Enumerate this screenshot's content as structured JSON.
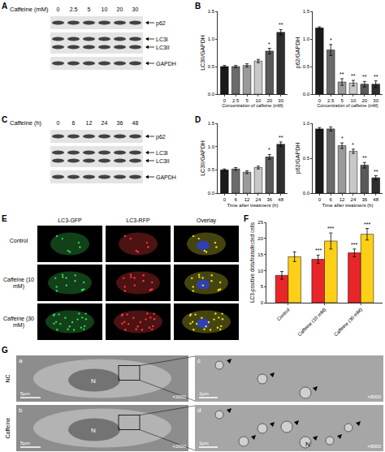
{
  "panel_labels": [
    "A",
    "B",
    "C",
    "D",
    "E",
    "F",
    "G"
  ],
  "blots": [
    {
      "panel": "A",
      "header": "Caffeine (mM)",
      "lanes": [
        "0",
        "2.5",
        "5",
        "10",
        "20",
        "30"
      ],
      "bands": [
        "p62",
        "LC3I",
        "LC3II",
        "GAPDH"
      ]
    },
    {
      "panel": "C",
      "header": "Caffeine (h)",
      "lanes": [
        "0",
        "6",
        "12",
        "24",
        "36",
        "48"
      ],
      "bands": [
        "p62",
        "LC3I",
        "LC3II",
        "GAPDH"
      ]
    }
  ],
  "fluorescence": {
    "panel": "E",
    "columns": [
      "LC3-GFP",
      "LC3-RFP",
      "Overlay"
    ],
    "rows": [
      "Control",
      "Caffeine (10 mM)",
      "Caffeine (30 mM)"
    ]
  },
  "em": {
    "panel": "G",
    "rows": [
      {
        "name": "NC",
        "left": "a",
        "right": "c"
      },
      {
        "name": "Caffeine",
        "left": "b",
        "right": "d"
      }
    ],
    "left_scale": "5μm",
    "right_scale": "1μm",
    "left_mag": "×2000",
    "right_mag": "×8000",
    "nucleus": "N"
  },
  "chart_data": [
    {
      "panel": "B",
      "type": "bar",
      "categories": [
        "0",
        "2.5",
        "5",
        "10",
        "20",
        "30"
      ],
      "values": [
        0.5,
        0.5,
        0.52,
        0.6,
        0.78,
        1.12
      ],
      "errors": [
        0.02,
        0.02,
        0.03,
        0.03,
        0.05,
        0.05
      ],
      "colors": [
        "#1a1a1a",
        "#6b6b6b",
        "#9a9a9a",
        "#c8c8c8",
        "#5a5a5a",
        "#2e2e2e"
      ],
      "ylim": [
        0,
        1.5
      ],
      "yticks": [
        {
          "value": 0,
          "label": "0.0"
        },
        {
          "value": 0.5,
          "label": "0.5"
        },
        {
          "value": 1,
          "label": "1.0"
        },
        {
          "value": 1.5,
          "label": "1.5"
        }
      ],
      "y_label": "LC3II/GAPDH",
      "x_label": "Concentration of caffeine (mM)",
      "grid": false,
      "annotations": [
        {
          "category": "20",
          "text": "*"
        },
        {
          "category": "30",
          "text": "**"
        }
      ]
    },
    {
      "panel": "B",
      "type": "bar",
      "categories": [
        "0",
        "2.5",
        "5",
        "10",
        "20",
        "30"
      ],
      "values": [
        1.2,
        0.8,
        0.22,
        0.2,
        0.18,
        0.18
      ],
      "errors": [
        0.02,
        0.1,
        0.06,
        0.05,
        0.05,
        0.06
      ],
      "colors": [
        "#1a1a1a",
        "#6b6b6b",
        "#9a9a9a",
        "#c8c8c8",
        "#5a5a5a",
        "#2e2e2e"
      ],
      "ylim": [
        0,
        1.5
      ],
      "yticks": [
        {
          "value": 0,
          "label": "0.0"
        },
        {
          "value": 0.5,
          "label": "0.5"
        },
        {
          "value": 1,
          "label": "1.0"
        },
        {
          "value": 1.5,
          "label": "1.5"
        }
      ],
      "y_label": "p62/GAPDH",
      "x_label": "Concentration of caffeine (mM)",
      "grid": false,
      "annotations": [
        {
          "category": "2.5",
          "text": "*"
        },
        {
          "category": "5",
          "text": "**"
        },
        {
          "category": "10",
          "text": "**"
        },
        {
          "category": "20",
          "text": "**"
        },
        {
          "category": "30",
          "text": "**"
        }
      ]
    },
    {
      "panel": "D",
      "type": "bar",
      "categories": [
        "0",
        "6",
        "12",
        "24",
        "36",
        "48"
      ],
      "values": [
        0.5,
        0.52,
        0.45,
        0.55,
        0.78,
        1.05
      ],
      "errors": [
        0.02,
        0.03,
        0.03,
        0.03,
        0.05,
        0.05
      ],
      "colors": [
        "#1a1a1a",
        "#6b6b6b",
        "#9a9a9a",
        "#c8c8c8",
        "#5a5a5a",
        "#2e2e2e"
      ],
      "ylim": [
        0,
        1.5
      ],
      "yticks": [
        {
          "value": 0,
          "label": "0.0"
        },
        {
          "value": 0.5,
          "label": "0.5"
        },
        {
          "value": 1,
          "label": "1.0"
        },
        {
          "value": 1.5,
          "label": "1.5"
        }
      ],
      "y_label": "LC3II/GAPDH",
      "x_label": "Time after treatment (h)",
      "grid": false,
      "annotations": [
        {
          "category": "36",
          "text": "*"
        },
        {
          "category": "48",
          "text": "**"
        }
      ]
    },
    {
      "panel": "D",
      "type": "bar",
      "categories": [
        "0",
        "6",
        "12",
        "24",
        "36",
        "48"
      ],
      "values": [
        0.92,
        0.92,
        0.68,
        0.6,
        0.4,
        0.22
      ],
      "errors": [
        0.02,
        0.03,
        0.04,
        0.03,
        0.04,
        0.03
      ],
      "colors": [
        "#1a1a1a",
        "#6b6b6b",
        "#9a9a9a",
        "#c8c8c8",
        "#5a5a5a",
        "#2e2e2e"
      ],
      "ylim": [
        0,
        1
      ],
      "yticks": [
        {
          "value": 0,
          "label": "0.0"
        },
        {
          "value": 0.5,
          "label": "0.5"
        },
        {
          "value": 1,
          "label": "1.0"
        }
      ],
      "y_label": "p62/GAPDH",
      "x_label": "Time after treatment (h)",
      "grid": false,
      "annotations": [
        {
          "category": "12",
          "text": "*"
        },
        {
          "category": "24",
          "text": "*"
        },
        {
          "category": "36",
          "text": "**"
        },
        {
          "category": "48",
          "text": "**"
        }
      ]
    },
    {
      "panel": "F",
      "type": "bar",
      "categories": [
        "Control",
        "Caffeine (10 mM)",
        "Caffeine (30 mM)"
      ],
      "series": [
        {
          "color": "#e8262a",
          "values": [
            8.5,
            13.5,
            15.5
          ],
          "errors": [
            1.2,
            1.3,
            1.2
          ]
        },
        {
          "color": "#fdd017",
          "values": [
            14.3,
            19.2,
            21.3
          ],
          "errors": [
            1.5,
            2.5,
            1.8
          ]
        }
      ],
      "ylim": [
        0,
        25
      ],
      "yticks": [
        0,
        5,
        10,
        15,
        20,
        25
      ],
      "y_label": "LC3-positive dots/transfected cells",
      "grid": false,
      "annotations": [
        {
          "category": "Caffeine (10 mM)",
          "series": 0,
          "text": "***"
        },
        {
          "category": "Caffeine (10 mM)",
          "series": 1,
          "text": "***"
        },
        {
          "category": "Caffeine (30 mM)",
          "series": 0,
          "text": "***"
        },
        {
          "category": "Caffeine (30 mM)",
          "series": 1,
          "text": "***"
        }
      ]
    }
  ]
}
